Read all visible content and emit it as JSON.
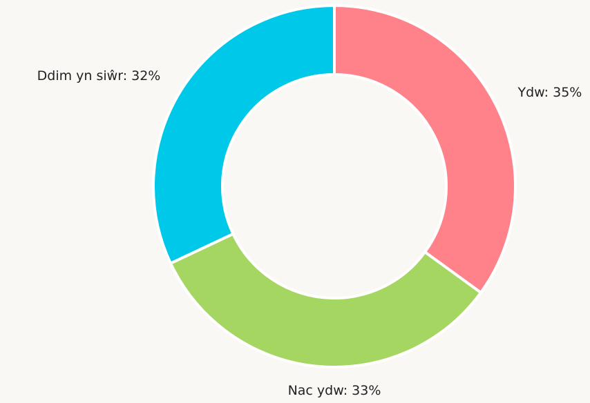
{
  "chart_data": {
    "type": "donut",
    "categories": [
      "Ydw",
      "Nac ydw",
      "Ddim yn siŵr"
    ],
    "values": [
      35,
      33,
      32
    ],
    "value_labels": [
      "Ydw: 35%",
      "Nac ydw: 33%",
      "Ddim yn siŵr: 32%"
    ],
    "colors": [
      "#ff828b",
      "#a6d662",
      "#00c8e8"
    ]
  }
}
